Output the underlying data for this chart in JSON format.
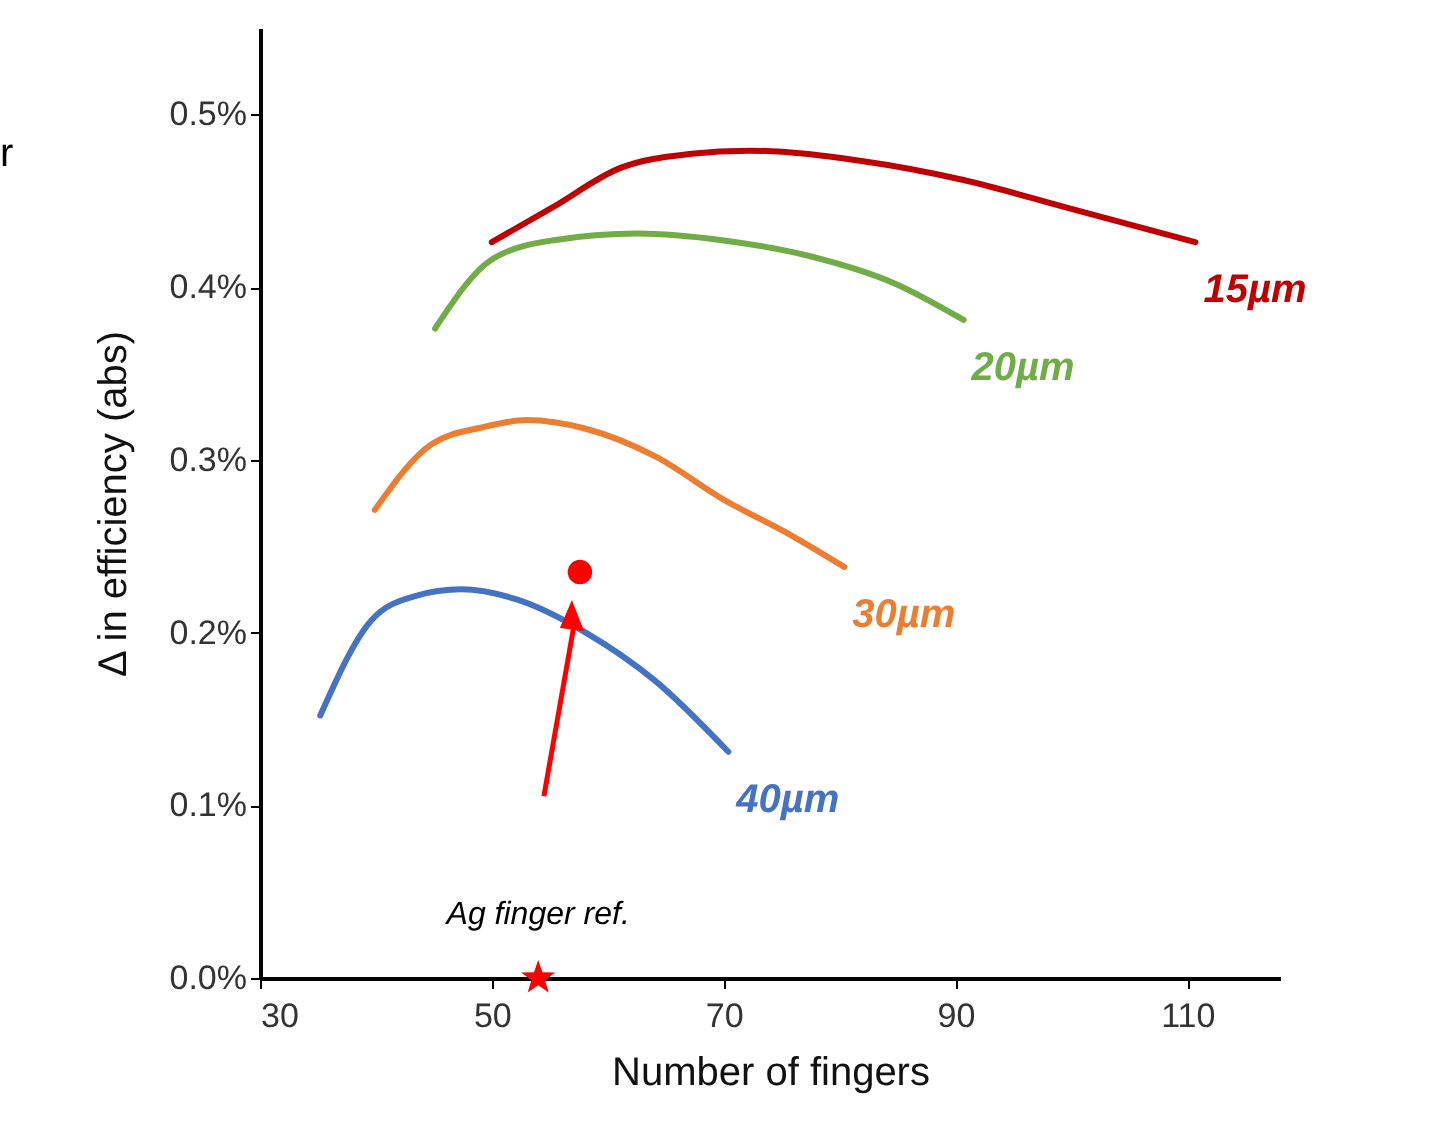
{
  "chart_data": {
    "type": "line",
    "xlabel": "Number of fingers",
    "ylabel": "Δ in efficiency (abs)",
    "xlim": [
      30,
      118
    ],
    "xticks": [
      30,
      50,
      70,
      90,
      110
    ],
    "ylim": [
      0,
      0.55
    ],
    "yticks": [
      {
        "value": 0,
        "label": "0.0%"
      },
      {
        "value": 0.1,
        "label": "0.1%"
      },
      {
        "value": 0.2,
        "label": "0.2%"
      },
      {
        "value": 0.3,
        "label": "0.3%"
      },
      {
        "value": 0.4,
        "label": "0.4%"
      },
      {
        "value": 0.5,
        "label": "0.5%"
      }
    ],
    "grid": false,
    "line_style": "solid",
    "series": [
      {
        "name": "15µm",
        "color": "#c00000",
        "x": [
          50,
          55.2,
          61.1,
          67,
          72.2,
          81.9,
          90.7,
          99.6,
          110.7
        ],
        "values": [
          0.426,
          0.446,
          0.469,
          0.477,
          0.479,
          0.473,
          0.462,
          0.446,
          0.426
        ]
      },
      {
        "name": "20µm",
        "color": "#70ad47",
        "x": [
          45.1,
          50,
          55.2,
          62.6,
          70,
          77.4,
          84.8,
          90.7
        ],
        "values": [
          0.376,
          0.416,
          0.427,
          0.431,
          0.427,
          0.418,
          0.402,
          0.381
        ]
      },
      {
        "name": "30µm",
        "color": "#ed7d31",
        "x": [
          39.9,
          44.8,
          49.3,
          53,
          58.1,
          64.1,
          70,
          75.9,
          80.4
        ],
        "values": [
          0.271,
          0.309,
          0.319,
          0.323,
          0.318,
          0.302,
          0.277,
          0.256,
          0.238
        ]
      },
      {
        "name": "40µm",
        "color": "#4472c4",
        "x": [
          35.2,
          39.6,
          43.3,
          47.4,
          52.2,
          58.1,
          64.1,
          70.4
        ],
        "values": [
          0.152,
          0.207,
          0.221,
          0.225,
          0.219,
          0.2,
          0.172,
          0.131
        ]
      },
      {
        "type": "scatter",
        "marker": "circle",
        "color": "#ff0000",
        "x": [
          57.6
        ],
        "values": [
          0.235
        ]
      },
      {
        "type": "scatter",
        "marker": "star",
        "color": "#ff0000",
        "x": [
          54
        ],
        "values": [
          0
        ]
      }
    ],
    "annotations": [
      "r",
      {
        "text": "Ag finger ref.",
        "x": 54,
        "y": 0
      }
    ]
  }
}
